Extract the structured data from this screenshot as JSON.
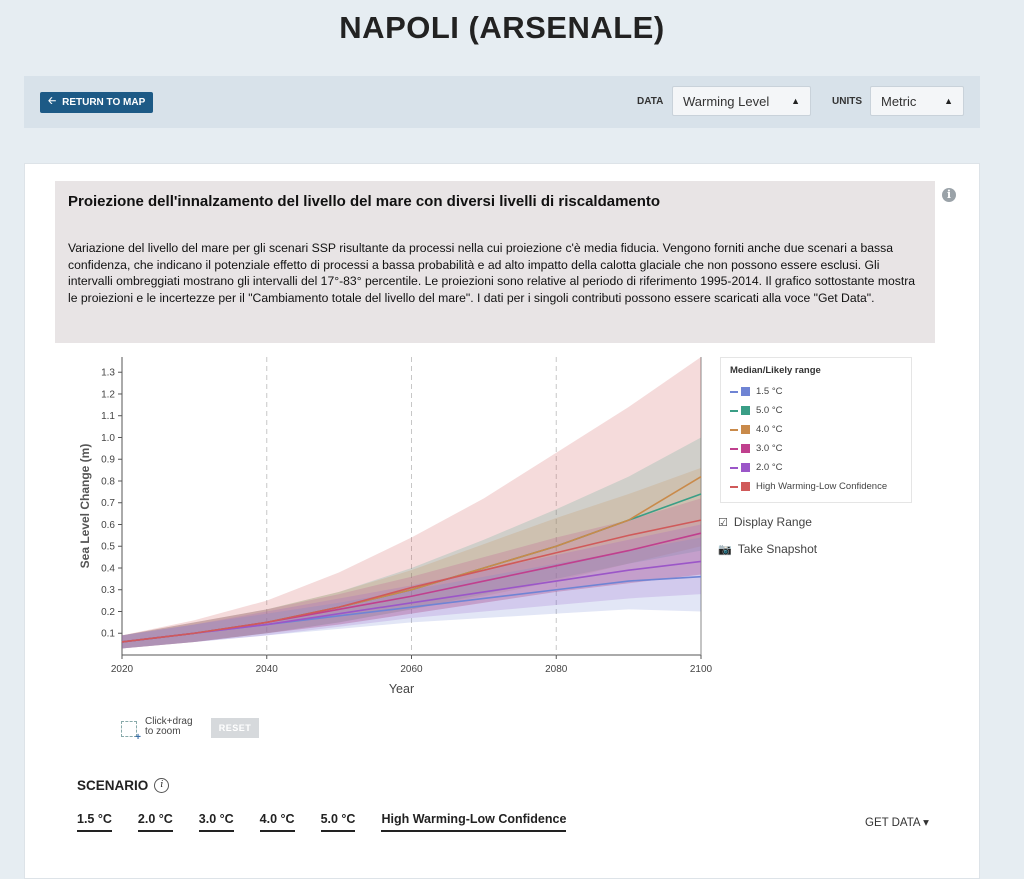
{
  "title": "NAPOLI (ARSENALE)",
  "toolbar": {
    "return_label": "RETURN TO MAP",
    "data_label": "DATA",
    "data_value": "Warming Level",
    "units_label": "UNITS",
    "units_value": "Metric"
  },
  "description": {
    "title": "Proiezione dell'innalzamento  del livello del mare con diversi livelli di riscaldamento",
    "body": "Variazione del livello del mare per gli scenari SSP risultante da processi nella cui proiezione c'è media fiducia. Vengono forniti anche due scenari a bassa confidenza, che indicano il potenziale effetto di processi a bassa probabilità e ad alto impatto della calotta glaciale che non possono essere esclusi. Gli intervalli ombreggiati mostrano gli intervalli del 17°-83° percentile. Le proiezioni sono relative al periodo di riferimento 1995-2014. Il grafico sottostante mostra le proiezioni e le incertezze per il \"Cambiamento totale del livello del mare\". I dati per i singoli contributi possono essere scaricati alla voce \"Get Data\"."
  },
  "chart_data": {
    "type": "area",
    "xlabel": "Year",
    "ylabel": "Sea Level Change (m)",
    "xlim": [
      2020,
      2100
    ],
    "ylim": [
      0,
      1.37
    ],
    "x_ticks": [
      "2020",
      "2040",
      "2060",
      "2080",
      "2100"
    ],
    "y_ticks": [
      "0.1",
      "0.2",
      "0.3",
      "0.4",
      "0.5",
      "0.6",
      "0.7",
      "0.8",
      "0.9",
      "1.0",
      "1.1",
      "1.2",
      "1.3"
    ],
    "grid": "vertical dashed",
    "legend_title": "Median/Likely range",
    "legend_position": "right",
    "x": [
      2020,
      2030,
      2040,
      2050,
      2060,
      2070,
      2080,
      2090,
      2100
    ],
    "series": [
      {
        "name": "1.5 °C",
        "color": "#6f84d4",
        "median": [
          0.06,
          0.1,
          0.14,
          0.18,
          0.22,
          0.26,
          0.3,
          0.34,
          0.36
        ],
        "low": [
          0.03,
          0.06,
          0.09,
          0.12,
          0.15,
          0.17,
          0.19,
          0.21,
          0.2
        ],
        "high": [
          0.09,
          0.14,
          0.19,
          0.24,
          0.3,
          0.36,
          0.42,
          0.48,
          0.54
        ]
      },
      {
        "name": "5.0 °C",
        "color": "#3a9e86",
        "median": [
          0.06,
          0.1,
          0.15,
          0.22,
          0.3,
          0.4,
          0.5,
          0.62,
          0.74
        ],
        "low": [
          0.03,
          0.06,
          0.1,
          0.15,
          0.21,
          0.28,
          0.35,
          0.42,
          0.48
        ],
        "high": [
          0.09,
          0.15,
          0.21,
          0.29,
          0.4,
          0.53,
          0.67,
          0.82,
          1.0
        ]
      },
      {
        "name": "4.0 °C",
        "color": "#c98a4a",
        "median": [
          0.06,
          0.1,
          0.15,
          0.22,
          0.3,
          0.4,
          0.5,
          0.62,
          0.82
        ],
        "low": [
          0.03,
          0.06,
          0.1,
          0.15,
          0.21,
          0.27,
          0.34,
          0.42,
          0.5
        ],
        "high": [
          0.09,
          0.15,
          0.21,
          0.29,
          0.39,
          0.51,
          0.63,
          0.74,
          0.86
        ]
      },
      {
        "name": "3.0 °C",
        "color": "#c0408e",
        "median": [
          0.06,
          0.1,
          0.15,
          0.21,
          0.27,
          0.34,
          0.41,
          0.48,
          0.56
        ],
        "low": [
          0.03,
          0.06,
          0.1,
          0.14,
          0.19,
          0.24,
          0.29,
          0.33,
          0.37
        ],
        "high": [
          0.09,
          0.15,
          0.21,
          0.28,
          0.36,
          0.45,
          0.54,
          0.62,
          0.72
        ]
      },
      {
        "name": "2.0 °C",
        "color": "#9b56c8",
        "median": [
          0.06,
          0.1,
          0.14,
          0.19,
          0.24,
          0.29,
          0.34,
          0.39,
          0.43
        ],
        "low": [
          0.03,
          0.06,
          0.09,
          0.13,
          0.17,
          0.2,
          0.23,
          0.26,
          0.28
        ],
        "high": [
          0.09,
          0.14,
          0.2,
          0.26,
          0.32,
          0.39,
          0.46,
          0.53,
          0.6
        ]
      },
      {
        "name": "High Warming-Low Confidence",
        "color": "#d05a5a",
        "median": [
          0.06,
          0.1,
          0.15,
          0.22,
          0.31,
          0.39,
          0.47,
          0.55,
          0.62
        ],
        "low": [
          0.03,
          0.06,
          0.1,
          0.14,
          0.19,
          0.24,
          0.29,
          0.33,
          0.37
        ],
        "high": [
          0.09,
          0.16,
          0.25,
          0.38,
          0.54,
          0.72,
          0.93,
          1.14,
          1.37
        ]
      }
    ]
  },
  "options": {
    "display_range": "Display Range",
    "take_snapshot": "Take Snapshot"
  },
  "zoom": {
    "hint_line1": "Click+drag",
    "hint_line2": "to zoom",
    "reset_label": "RESET"
  },
  "scenario": {
    "title": "SCENARIO",
    "tabs": [
      "1.5 °C",
      "2.0 °C",
      "3.0 °C",
      "4.0 °C",
      "5.0 °C",
      "High Warming-Low Confidence"
    ],
    "get_data_label": "GET DATA ▾"
  }
}
